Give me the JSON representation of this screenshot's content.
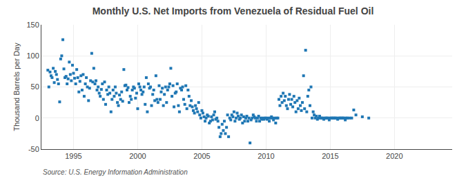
{
  "chart_data": {
    "type": "scatter",
    "title": "Monthly U.S. Net Imports from Venezuela of Residual Fuel Oil",
    "ylabel": "Thousand Barrels per Day",
    "annotations": [
      "Source: U.S. Energy Information Administration"
    ],
    "marker": "square",
    "grid": true,
    "xlim": [
      1992.5,
      2024.5
    ],
    "xticks": [
      1995,
      2000,
      2005,
      2010,
      2015,
      2020
    ],
    "ylim": [
      -50,
      150
    ],
    "yticks": [
      -50,
      0,
      50,
      100,
      150
    ],
    "x": [
      1993.0,
      1993.08,
      1993.17,
      1993.25,
      1993.33,
      1993.42,
      1993.5,
      1993.58,
      1993.67,
      1993.75,
      1993.83,
      1993.92,
      1994.0,
      1994.08,
      1994.17,
      1994.25,
      1994.33,
      1994.42,
      1994.5,
      1994.58,
      1994.67,
      1994.75,
      1994.83,
      1994.92,
      1995.0,
      1995.08,
      1995.17,
      1995.25,
      1995.33,
      1995.42,
      1995.5,
      1995.58,
      1995.67,
      1995.75,
      1995.83,
      1995.92,
      1996.0,
      1996.08,
      1996.17,
      1996.25,
      1996.33,
      1996.42,
      1996.5,
      1996.58,
      1996.67,
      1996.75,
      1996.83,
      1996.92,
      1997.0,
      1997.08,
      1997.17,
      1997.25,
      1997.33,
      1997.42,
      1997.5,
      1997.58,
      1997.67,
      1997.75,
      1997.83,
      1997.92,
      1998.0,
      1998.08,
      1998.17,
      1998.25,
      1998.33,
      1998.42,
      1998.5,
      1998.58,
      1998.67,
      1998.75,
      1998.83,
      1998.92,
      1999.0,
      1999.08,
      1999.17,
      1999.25,
      1999.33,
      1999.42,
      1999.5,
      1999.58,
      1999.67,
      1999.75,
      1999.83,
      1999.92,
      2000.0,
      2000.08,
      2000.17,
      2000.25,
      2000.33,
      2000.42,
      2000.5,
      2000.58,
      2000.67,
      2000.75,
      2000.83,
      2000.92,
      2001.0,
      2001.08,
      2001.17,
      2001.25,
      2001.33,
      2001.42,
      2001.5,
      2001.58,
      2001.67,
      2001.75,
      2001.83,
      2001.92,
      2002.0,
      2002.08,
      2002.17,
      2002.25,
      2002.33,
      2002.42,
      2002.5,
      2002.58,
      2002.67,
      2002.75,
      2002.83,
      2002.92,
      2003.0,
      2003.08,
      2003.17,
      2003.25,
      2003.33,
      2003.42,
      2003.5,
      2003.58,
      2003.67,
      2003.75,
      2003.83,
      2003.92,
      2004.0,
      2004.08,
      2004.17,
      2004.25,
      2004.33,
      2004.42,
      2004.5,
      2004.58,
      2004.67,
      2004.75,
      2004.83,
      2004.92,
      2005.0,
      2005.08,
      2005.17,
      2005.25,
      2005.33,
      2005.42,
      2005.5,
      2005.58,
      2005.67,
      2005.75,
      2005.83,
      2005.92,
      2006.0,
      2006.08,
      2006.17,
      2006.25,
      2006.33,
      2006.42,
      2006.5,
      2006.58,
      2006.67,
      2006.75,
      2006.83,
      2006.92,
      2007.0,
      2007.08,
      2007.17,
      2007.25,
      2007.33,
      2007.42,
      2007.5,
      2007.58,
      2007.67,
      2007.75,
      2007.83,
      2007.92,
      2008.0,
      2008.08,
      2008.17,
      2008.25,
      2008.33,
      2008.42,
      2008.5,
      2008.58,
      2008.67,
      2008.75,
      2008.83,
      2008.92,
      2009.0,
      2009.08,
      2009.17,
      2009.25,
      2009.33,
      2009.42,
      2009.5,
      2009.58,
      2009.67,
      2009.75,
      2009.83,
      2009.92,
      2010.0,
      2010.08,
      2010.17,
      2010.25,
      2010.33,
      2010.42,
      2010.5,
      2010.58,
      2010.67,
      2010.75,
      2010.83,
      2010.92,
      2011.0,
      2011.08,
      2011.17,
      2011.25,
      2011.33,
      2011.42,
      2011.5,
      2011.58,
      2011.67,
      2011.75,
      2011.83,
      2011.92,
      2012.0,
      2012.08,
      2012.17,
      2012.25,
      2012.33,
      2012.42,
      2012.5,
      2012.58,
      2012.67,
      2012.75,
      2012.83,
      2012.92,
      2013.0,
      2013.08,
      2013.17,
      2013.25,
      2013.33,
      2013.42,
      2013.5,
      2013.58,
      2013.67,
      2013.75,
      2013.83,
      2013.92,
      2014.0,
      2014.08,
      2014.17,
      2014.25,
      2014.33,
      2014.42,
      2014.5,
      2014.58,
      2014.67,
      2014.75,
      2014.83,
      2014.92,
      2015.0,
      2015.08,
      2015.17,
      2015.25,
      2015.33,
      2015.42,
      2015.5,
      2015.58,
      2015.67,
      2015.75,
      2015.83,
      2015.92,
      2016.0,
      2016.08,
      2016.17,
      2016.25,
      2016.33,
      2016.5,
      2016.67,
      2016.83,
      2017.0,
      2017.5,
      2018.0
    ],
    "values": [
      77,
      50,
      74,
      68,
      65,
      80,
      57,
      75,
      70,
      62,
      55,
      26,
      95,
      100,
      126,
      79,
      65,
      67,
      55,
      63,
      90,
      70,
      60,
      85,
      72,
      64,
      55,
      78,
      65,
      42,
      59,
      68,
      45,
      70,
      35,
      55,
      65,
      50,
      28,
      48,
      60,
      104,
      58,
      80,
      55,
      60,
      45,
      50,
      40,
      35,
      46,
      55,
      30,
      58,
      22,
      45,
      38,
      50,
      40,
      10,
      30,
      45,
      35,
      50,
      40,
      25,
      20,
      37,
      30,
      42,
      27,
      78,
      52,
      53,
      45,
      49,
      25,
      35,
      30,
      45,
      50,
      48,
      32,
      40,
      15,
      55,
      50,
      45,
      38,
      42,
      50,
      22,
      65,
      10,
      55,
      48,
      50,
      20,
      38,
      45,
      28,
      68,
      30,
      25,
      52,
      30,
      42,
      48,
      20,
      38,
      50,
      25,
      45,
      50,
      55,
      80,
      35,
      52,
      18,
      40,
      42,
      55,
      20,
      10,
      48,
      45,
      50,
      30,
      22,
      52,
      15,
      45,
      35,
      20,
      28,
      18,
      12,
      8,
      20,
      15,
      10,
      25,
      5,
      0,
      12,
      8,
      2,
      -5,
      0,
      5,
      3,
      -8,
      -5,
      2,
      -3,
      5,
      10,
      -2,
      0,
      -5,
      -15,
      -30,
      -25,
      -10,
      -20,
      -5,
      -25,
      -15,
      5,
      -30,
      0,
      -3,
      5,
      2,
      10,
      -5,
      0,
      8,
      3,
      -2,
      0,
      5,
      -8,
      2,
      -5,
      0,
      3,
      -5,
      0,
      -40,
      -3,
      0,
      5,
      2,
      0,
      -5,
      0,
      3,
      -5,
      0,
      -2,
      0,
      -2,
      0,
      0,
      -2,
      0,
      -5,
      0,
      2,
      0,
      -3,
      0,
      -8,
      0,
      0,
      30,
      20,
      35,
      25,
      40,
      28,
      35,
      20,
      15,
      30,
      38,
      22,
      30,
      18,
      35,
      25,
      10,
      28,
      15,
      32,
      20,
      12,
      25,
      68,
      15,
      109,
      10,
      35,
      45,
      20,
      50,
      0,
      10,
      5,
      0,
      3,
      -2,
      0,
      3,
      0,
      0,
      0,
      -2,
      0,
      0,
      0,
      0,
      -3,
      0,
      0,
      0,
      0,
      0,
      0,
      0,
      -2,
      0,
      0,
      0,
      0,
      0,
      0,
      -3,
      0,
      0,
      0,
      0,
      13,
      5,
      2,
      0
    ]
  }
}
